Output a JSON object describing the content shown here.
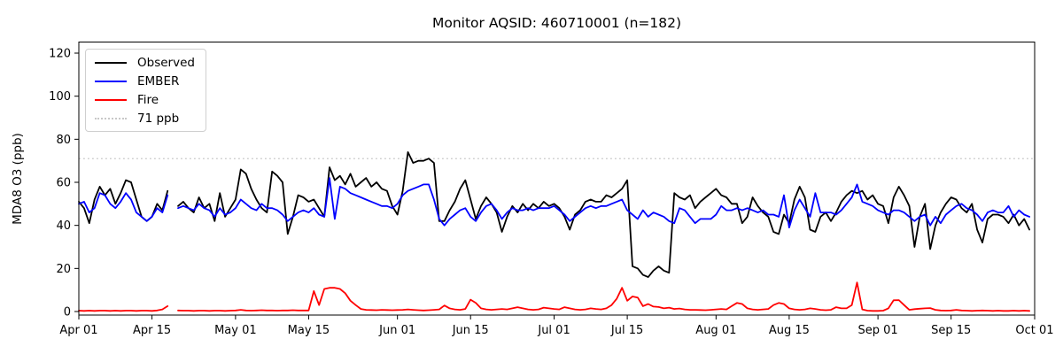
{
  "chart_data": {
    "type": "line",
    "title": "Monitor AQSID: 460710001 (n=182)",
    "xlabel": "",
    "ylabel": "MDA8 O3 (ppb)",
    "ylim": [
      0,
      125
    ],
    "y_ticks": [
      0,
      20,
      40,
      60,
      80,
      100,
      120
    ],
    "x_start": "Apr 01",
    "x_end": "Sep 30",
    "x_step": "1 day",
    "n_points": 182,
    "missing_day": "Apr 19",
    "grid": false,
    "legend_position": "upper left",
    "x_ticks": [
      {
        "label": "Apr 01",
        "day": 0
      },
      {
        "label": "Apr 15",
        "day": 14
      },
      {
        "label": "May 01",
        "day": 30
      },
      {
        "label": "May 15",
        "day": 44
      },
      {
        "label": "Jun 01",
        "day": 61
      },
      {
        "label": "Jun 15",
        "day": 75
      },
      {
        "label": "Jul 01",
        "day": 91
      },
      {
        "label": "Jul 15",
        "day": 105
      },
      {
        "label": "Aug 01",
        "day": 122
      },
      {
        "label": "Aug 15",
        "day": 136
      },
      {
        "label": "Sep 01",
        "day": 153
      },
      {
        "label": "Sep 15",
        "day": 167
      },
      {
        "label": "Oct 01",
        "day": 183
      }
    ],
    "threshold": {
      "label": "71 ppb",
      "value": 71,
      "color": "#c8c8c8",
      "style": "dotted"
    },
    "series": [
      {
        "name": "Observed",
        "color": "#000000",
        "values": [
          51,
          48,
          41,
          52,
          58,
          54,
          57,
          50,
          55,
          61,
          60,
          52,
          44,
          42,
          44,
          50,
          47,
          56,
          null,
          49,
          51,
          48,
          46,
          53,
          48,
          50,
          42,
          55,
          44,
          48,
          52,
          66,
          64,
          57,
          52,
          48,
          46,
          65,
          63,
          60,
          36,
          44,
          54,
          53,
          51,
          52,
          48,
          44,
          67,
          61,
          63,
          59,
          64,
          58,
          60,
          62,
          58,
          60,
          57,
          56,
          49,
          45,
          56,
          74,
          69,
          70,
          70,
          71,
          69,
          42,
          42,
          47,
          51,
          57,
          61,
          52,
          43,
          49,
          53,
          50,
          46,
          37,
          44,
          49,
          46,
          50,
          47,
          50,
          48,
          51,
          49,
          50,
          48,
          44,
          38,
          45,
          47,
          51,
          52,
          51,
          51,
          54,
          53,
          55,
          57,
          61,
          21,
          20,
          17,
          16,
          19,
          21,
          19,
          18,
          55,
          53,
          52,
          54,
          48,
          51,
          53,
          55,
          57,
          54,
          53,
          50,
          50,
          41,
          44,
          53,
          49,
          46,
          44,
          37,
          36,
          45,
          41,
          52,
          58,
          53,
          38,
          37,
          44,
          46,
          42,
          46,
          51,
          54,
          56,
          55,
          56,
          52,
          54,
          50,
          49,
          41,
          53,
          58,
          54,
          49,
          30,
          44,
          50,
          29,
          40,
          46,
          50,
          53,
          52,
          48,
          46,
          50,
          38,
          32,
          43,
          45,
          45,
          44,
          41,
          45,
          40,
          43,
          38
        ]
      },
      {
        "name": "EMBER",
        "color": "#0000ff",
        "values": [
          50,
          51,
          46,
          48,
          55,
          54,
          50,
          48,
          51,
          55,
          52,
          46,
          44,
          42,
          44,
          48,
          46,
          54,
          null,
          48,
          49,
          48,
          47,
          50,
          48,
          47,
          44,
          48,
          45,
          46,
          48,
          52,
          50,
          48,
          47,
          50,
          48,
          48,
          47,
          45,
          42,
          44,
          46,
          47,
          46,
          48,
          45,
          44,
          62,
          43,
          58,
          57,
          55,
          54,
          53,
          52,
          51,
          50,
          49,
          49,
          48,
          50,
          54,
          56,
          57,
          58,
          59,
          59,
          52,
          43,
          40,
          43,
          45,
          47,
          48,
          44,
          42,
          46,
          49,
          50,
          47,
          43,
          46,
          48,
          47,
          47,
          48,
          47,
          48,
          48,
          48,
          49,
          47,
          45,
          42,
          44,
          46,
          48,
          49,
          48,
          49,
          49,
          50,
          51,
          52,
          47,
          45,
          43,
          47,
          44,
          46,
          45,
          44,
          42,
          41,
          48,
          47,
          44,
          41,
          43,
          43,
          43,
          45,
          49,
          47,
          47,
          48,
          47,
          48,
          47,
          46,
          47,
          45,
          45,
          44,
          54,
          39,
          47,
          52,
          48,
          44,
          55,
          46,
          46,
          46,
          45,
          47,
          50,
          53,
          59,
          51,
          50,
          49,
          47,
          46,
          45,
          47,
          47,
          46,
          44,
          42,
          44,
          45,
          40,
          44,
          41,
          45,
          47,
          49,
          50,
          48,
          47,
          45,
          42,
          46,
          47,
          46,
          46,
          49,
          44,
          47,
          45,
          44
        ]
      },
      {
        "name": "Fire",
        "color": "#ff0000",
        "values": [
          0.4,
          0.3,
          0.4,
          0.3,
          0.4,
          0.4,
          0.3,
          0.4,
          0.3,
          0.4,
          0.4,
          0.3,
          0.4,
          0.4,
          0.3,
          0.5,
          1.0,
          2.5,
          null,
          0.5,
          0.4,
          0.4,
          0.3,
          0.4,
          0.4,
          0.3,
          0.4,
          0.4,
          0.3,
          0.4,
          0.5,
          0.8,
          0.5,
          0.4,
          0.5,
          0.6,
          0.5,
          0.5,
          0.4,
          0.5,
          0.5,
          0.6,
          0.5,
          0.5,
          0.5,
          9.5,
          3.0,
          10.5,
          11.0,
          11.0,
          10.5,
          8.5,
          5.0,
          3.0,
          1.2,
          0.8,
          0.7,
          0.6,
          0.8,
          0.7,
          0.6,
          0.7,
          0.8,
          1.0,
          0.8,
          0.6,
          0.5,
          0.6,
          0.8,
          1.0,
          2.8,
          1.5,
          1.0,
          0.8,
          1.2,
          5.5,
          4.0,
          1.5,
          1.0,
          0.8,
          1.0,
          1.2,
          1.0,
          1.5,
          2.0,
          1.5,
          1.0,
          0.8,
          1.0,
          1.8,
          1.5,
          1.2,
          1.0,
          2.0,
          1.5,
          1.0,
          0.8,
          1.0,
          1.5,
          1.2,
          1.0,
          1.5,
          3.0,
          6.0,
          11.0,
          5.0,
          7.0,
          6.5,
          2.5,
          3.5,
          2.3,
          2.1,
          1.5,
          1.8,
          1.2,
          1.4,
          1.0,
          0.8,
          0.8,
          0.7,
          0.6,
          0.8,
          1.0,
          1.2,
          1.0,
          2.5,
          4.0,
          3.5,
          1.5,
          1.0,
          0.8,
          1.0,
          1.2,
          3.0,
          4.0,
          3.5,
          1.5,
          1.0,
          0.8,
          1.0,
          1.5,
          1.2,
          0.8,
          0.6,
          0.8,
          2.0,
          1.5,
          1.5,
          3.0,
          13.5,
          1.0,
          0.4,
          0.3,
          0.3,
          0.4,
          1.5,
          5.2,
          5.3,
          3.0,
          0.8,
          1.1,
          1.3,
          1.5,
          1.6,
          0.8,
          0.5,
          0.4,
          0.5,
          0.8,
          0.5,
          0.4,
          0.3,
          0.4,
          0.5,
          0.4,
          0.3,
          0.4,
          0.3,
          0.3,
          0.4,
          0.3,
          0.4,
          0.3
        ]
      }
    ],
    "legend_items": [
      {
        "label": "Observed",
        "color": "#000000",
        "style": "solid"
      },
      {
        "label": "EMBER",
        "color": "#0000ff",
        "style": "solid"
      },
      {
        "label": "Fire",
        "color": "#ff0000",
        "style": "solid"
      },
      {
        "label": "71 ppb",
        "color": "#c8c8c8",
        "style": "dotted"
      }
    ]
  }
}
